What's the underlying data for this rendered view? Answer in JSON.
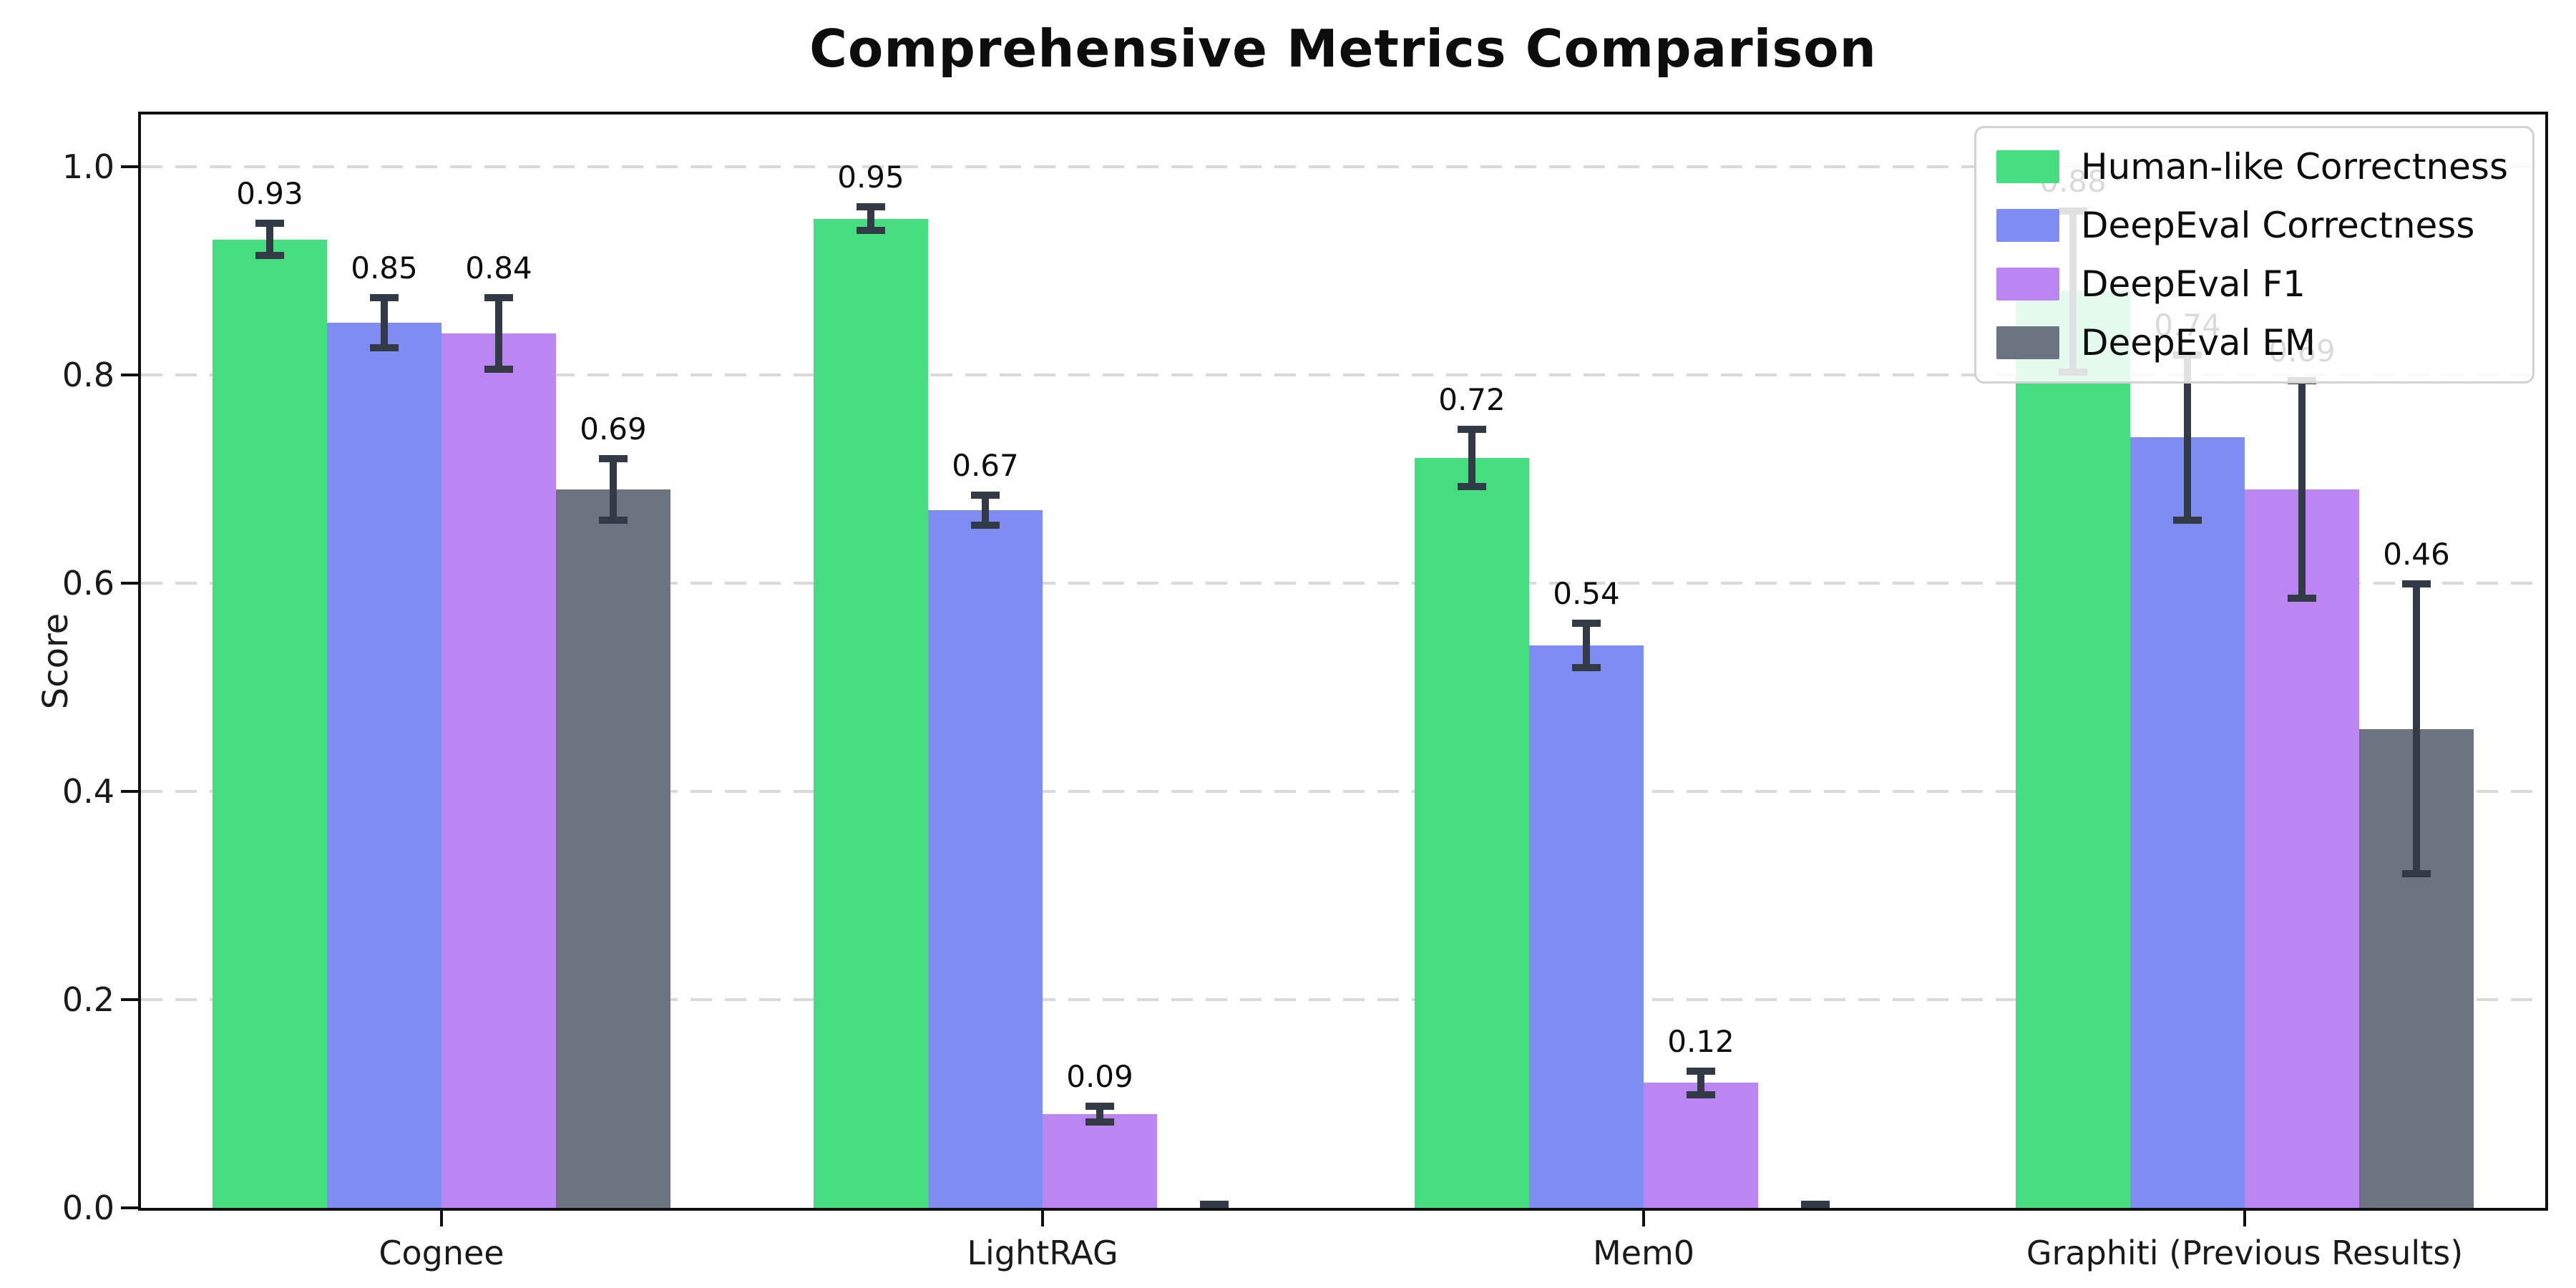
{
  "chart_data": {
    "type": "bar",
    "title": "Comprehensive Metrics Comparison",
    "ylabel": "Score",
    "xlabel": "",
    "categories": [
      "Cognee",
      "LightRAG",
      "Mem0",
      "Graphiti (Previous Results)"
    ],
    "series": [
      {
        "name": "Human-like Correctness",
        "color": "#46dc80",
        "values": [
          0.93,
          0.95,
          0.72,
          0.88
        ],
        "errors": [
          0.016,
          0.012,
          0.028,
          0.078
        ],
        "labels": [
          "0.93",
          "0.95",
          "0.72",
          "0.88"
        ]
      },
      {
        "name": "DeepEval Correctness",
        "color": "#7f8cf2",
        "values": [
          0.85,
          0.67,
          0.54,
          0.74
        ],
        "errors": [
          0.025,
          0.015,
          0.022,
          0.08
        ],
        "labels": [
          "0.85",
          "0.67",
          "0.54",
          "0.74"
        ]
      },
      {
        "name": "DeepEval F1",
        "color": "#bb86f2",
        "values": [
          0.84,
          0.09,
          0.12,
          0.69
        ],
        "errors": [
          0.035,
          0.008,
          0.012,
          0.105
        ],
        "labels": [
          "0.84",
          "0.09",
          "0.12",
          "0.69"
        ]
      },
      {
        "name": "DeepEval EM",
        "color": "#6b7280",
        "values": [
          0.69,
          0.0,
          0.0,
          0.46
        ],
        "errors": [
          0.03,
          0.004,
          0.004,
          0.14
        ],
        "labels": [
          "0.69",
          "",
          "",
          "0.46"
        ]
      }
    ],
    "ylim": [
      0,
      1.05
    ],
    "yticks": [
      0.0,
      0.2,
      0.4,
      0.6,
      0.8,
      1.0
    ],
    "grid": "horizontal-dashed",
    "legend_position": "upper-right",
    "colors": {
      "error_bar": "#323a45",
      "grid": "#d9d9d9",
      "axis": "#0f0f0f",
      "background": "#ffffff"
    }
  }
}
